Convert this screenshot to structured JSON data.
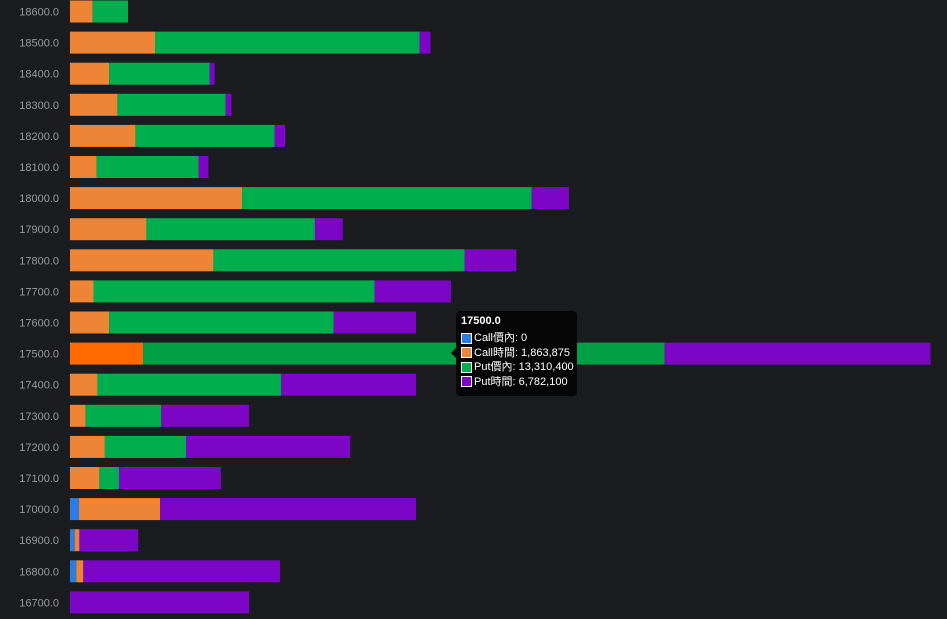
{
  "chart_data": {
    "type": "bar",
    "orientation": "horizontal",
    "stacked": true,
    "categories": [
      "18600.0",
      "18500.0",
      "18400.0",
      "18300.0",
      "18200.0",
      "18100.0",
      "18000.0",
      "17900.0",
      "17800.0",
      "17700.0",
      "17600.0",
      "17500.0",
      "17400.0",
      "17300.0",
      "17200.0",
      "17100.0",
      "17000.0",
      "16900.0",
      "16800.0",
      "16700.0"
    ],
    "series": [
      {
        "name": "Call價內",
        "color": "#2b7de3",
        "values": [
          0,
          0,
          0,
          0,
          0,
          0,
          0,
          0,
          0,
          0,
          0,
          0,
          0,
          0,
          0,
          0,
          230000,
          120000,
          160000,
          8000
        ]
      },
      {
        "name": "Call時間",
        "color": "#ee8435",
        "values": [
          580000,
          2170000,
          1000000,
          1210000,
          1670000,
          680000,
          4390000,
          1950000,
          3660000,
          600000,
          1000000,
          1863875,
          700000,
          400000,
          890000,
          750000,
          2070000,
          120000,
          180000,
          0
        ]
      },
      {
        "name": "Put價內",
        "color": "#00ae4e",
        "values": [
          900000,
          6750000,
          2560000,
          2760000,
          3550000,
          2600000,
          7390000,
          4300000,
          6410000,
          7170000,
          5730000,
          13310400,
          4690000,
          1930000,
          2070000,
          500000,
          0,
          0,
          0,
          0
        ]
      },
      {
        "name": "Put時間",
        "color": "#7c05c6",
        "values": [
          0,
          280000,
          130000,
          150000,
          270000,
          250000,
          950000,
          710000,
          1320000,
          1950000,
          2100000,
          6782100,
          3440000,
          2240000,
          4190000,
          2600000,
          6530000,
          1500000,
          5020000,
          4560000
        ]
      }
    ],
    "xlim": [
      0,
      22200000
    ],
    "grid": false,
    "legend": "none",
    "highlight": {
      "category": "17500.0",
      "colors": {
        "Call時間": "#ff6a00",
        "Put價內": "#009e45"
      }
    }
  },
  "tooltip": {
    "title": "17500.0",
    "rows": [
      {
        "text": "Call價內: 0",
        "color": "#2b7de3"
      },
      {
        "text": "Call時間: 1,863,875",
        "color": "#ee8435"
      },
      {
        "text": "Put價內: 13,310,400",
        "color": "#00ae4e"
      },
      {
        "text": "Put時間: 6,782,100",
        "color": "#7c05c6"
      }
    ]
  }
}
